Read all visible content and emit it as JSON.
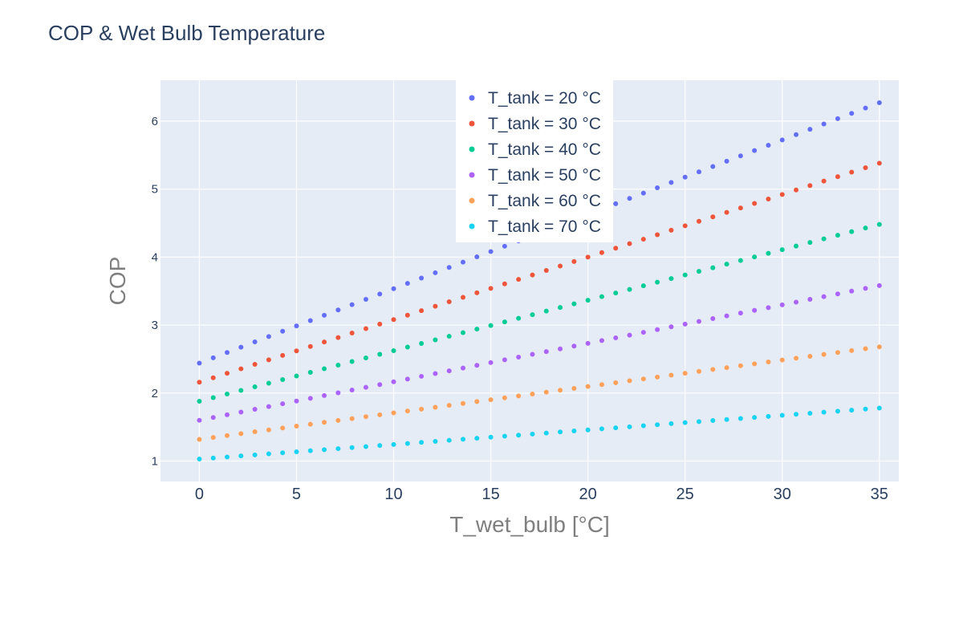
{
  "chart_data": {
    "type": "scatter",
    "title": "COP & Wet Bulb Temperature",
    "xlabel": "T_wet_bulb [°C]",
    "ylabel": "COP",
    "xlim": [
      -2,
      36
    ],
    "ylim": [
      0.7,
      6.6
    ],
    "xticks": [
      0,
      5,
      10,
      15,
      20,
      25,
      30,
      35
    ],
    "yticks": [
      1,
      2,
      3,
      4,
      5,
      6
    ],
    "grid": true,
    "legend_position": "top-center",
    "x": [
      0,
      35
    ],
    "points_per_series": 50,
    "series": [
      {
        "name": "T_tank = 20 °C",
        "color": "#636efa",
        "x_range": [
          0,
          35
        ],
        "y_start": 2.44,
        "y_end": 6.27
      },
      {
        "name": "T_tank = 30 °C",
        "color": "#ef553b",
        "x_range": [
          0,
          35
        ],
        "y_start": 2.16,
        "y_end": 5.38
      },
      {
        "name": "T_tank = 40 °C",
        "color": "#00cc96",
        "x_range": [
          0,
          35
        ],
        "y_start": 1.88,
        "y_end": 4.48
      },
      {
        "name": "T_tank = 50 °C",
        "color": "#ab63fa",
        "x_range": [
          0,
          35
        ],
        "y_start": 1.6,
        "y_end": 3.58
      },
      {
        "name": "T_tank = 60 °C",
        "color": "#ffa15a",
        "x_range": [
          0,
          35
        ],
        "y_start": 1.32,
        "y_end": 2.68
      },
      {
        "name": "T_tank = 70 °C",
        "color": "#19d3f3",
        "x_range": [
          0,
          35
        ],
        "y_start": 1.03,
        "y_end": 1.78
      }
    ]
  }
}
